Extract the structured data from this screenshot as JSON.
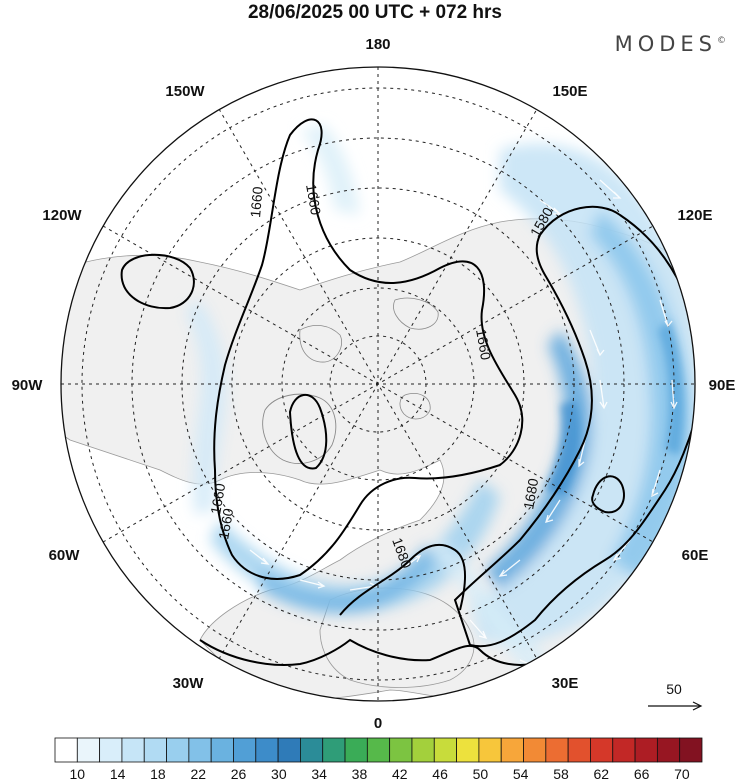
{
  "title": "28/06/2025  00 UTC  + 072 hrs",
  "brand": "MODES",
  "brand_mark": "©",
  "longitude_labels": {
    "lon_180": "180",
    "lon_150e": "150E",
    "lon_120e": "120E",
    "lon_90e": "90E",
    "lon_60e": "60E",
    "lon_30e": "30E",
    "lon_0": "0",
    "lon_30w": "30W",
    "lon_60w": "60W",
    "lon_90w": "90W",
    "lon_120w": "120W",
    "lon_150w": "150W"
  },
  "contour_labels": [
    "1660",
    "1660",
    "1660",
    "1580",
    "1660",
    "1680",
    "1660",
    "1680"
  ],
  "reference_vector": {
    "label": "50"
  },
  "colorbar": {
    "ticks": [
      "10",
      "14",
      "18",
      "22",
      "26",
      "30",
      "34",
      "38",
      "42",
      "46",
      "50",
      "54",
      "58",
      "62",
      "66",
      "70"
    ],
    "colors": [
      "#ffffff",
      "#eaf5fb",
      "#d9eefa",
      "#c6e5f7",
      "#b1dbf3",
      "#99cfee",
      "#82c1e8",
      "#6ab2e0",
      "#519fd6",
      "#3d8cc9",
      "#2f7bb8",
      "#2b8c98",
      "#2f9d78",
      "#3aac57",
      "#56b94a",
      "#7cc441",
      "#a3d03c",
      "#c8dc3b",
      "#ede13d",
      "#f7c63b",
      "#f7a63a",
      "#f28a35",
      "#ec6d32",
      "#e2512d",
      "#d53829",
      "#c22826",
      "#ad1d24",
      "#971622",
      "#821221"
    ],
    "range": [
      10,
      70
    ]
  }
}
